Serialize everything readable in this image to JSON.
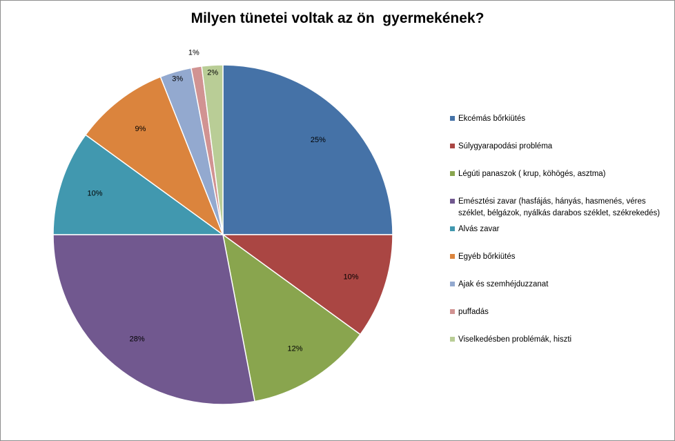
{
  "chart_data": {
    "type": "pie",
    "title": "Milyen tünetei voltak az ön  gyermekének?",
    "categories": [
      "Ekcémás bőrkiütés",
      "Súlygyarapodási probléma",
      "Légúti panaszok ( krup, köhögés, asztma)",
      "Emésztési zavar (hasfájás,  hányás, hasmenés, véres széklet, bélgázok, nyálkás darabos széklet, székrekedés)",
      "Alvás zavar",
      "Egyéb bőrkiütés",
      "Ajak és szemhéjduzzanat",
      "puffadás",
      "Viselkedésben problémák, hiszti"
    ],
    "values": [
      25,
      10,
      12,
      28,
      10,
      9,
      3,
      1,
      2
    ],
    "data_labels": [
      "25%",
      "10%",
      "12%",
      "28%",
      "10%",
      "9%",
      "3%",
      "1%",
      "2%"
    ],
    "colors": [
      "#4572A7",
      "#AA4643",
      "#89A54E",
      "#71588F",
      "#4198AF",
      "#DB843D",
      "#93A9CF",
      "#D19392",
      "#B9CD96"
    ],
    "legend_position": "right"
  }
}
